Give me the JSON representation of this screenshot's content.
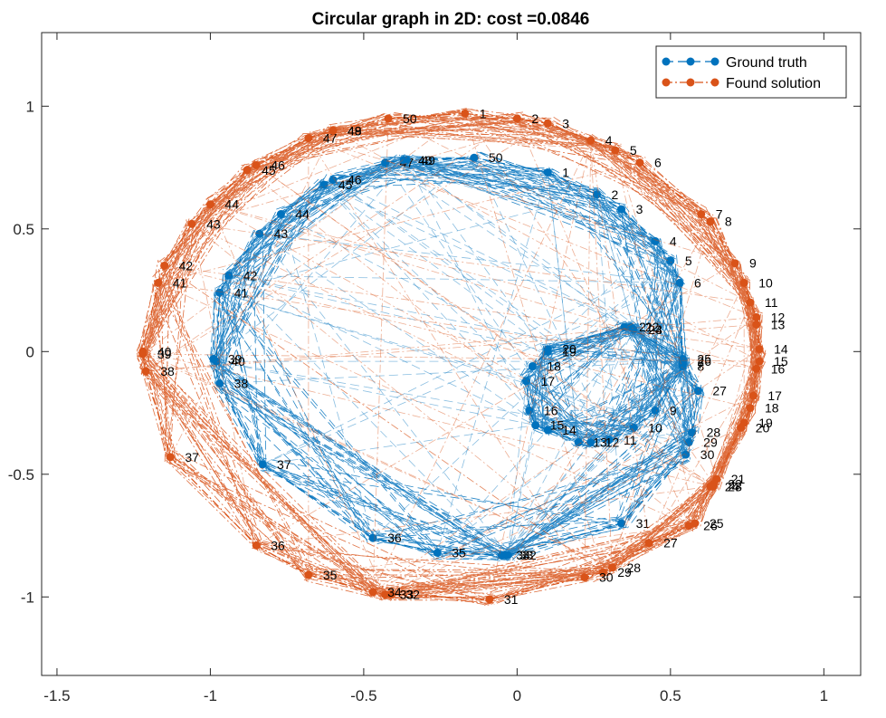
{
  "chart_data": {
    "type": "scatter",
    "title": "Circular graph in 2D: cost =0.0846",
    "xlabel": "",
    "ylabel": "",
    "xlim": [
      -1.55,
      1.12
    ],
    "ylim": [
      -1.32,
      1.3
    ],
    "xticks": [
      -1.5,
      -1,
      -0.5,
      0,
      0.5,
      1
    ],
    "xtick_labels": [
      "-1.5",
      "-1",
      "-0.5",
      "0",
      "0.5",
      "1"
    ],
    "yticks": [
      -1,
      -0.5,
      0,
      0.5,
      1
    ],
    "ytick_labels": [
      "-1",
      "-0.5",
      "0",
      "0.5",
      "1"
    ],
    "grid": false,
    "legend_position": "top-right",
    "series": [
      {
        "name": "Ground truth",
        "color": "#0072BD",
        "line_style": "dashed",
        "node_labels": [
          "1",
          "2",
          "3",
          "4",
          "5",
          "6",
          "7",
          "8",
          "9",
          "10",
          "11",
          "12",
          "13",
          "14",
          "15",
          "16",
          "17",
          "18",
          "19",
          "20",
          "21",
          "22",
          "23",
          "24",
          "25",
          "26",
          "27",
          "28",
          "29",
          "30",
          "31",
          "32",
          "33",
          "34",
          "35",
          "36",
          "37",
          "38",
          "39",
          "40",
          "41",
          "42",
          "43",
          "44",
          "45",
          "46",
          "47",
          "48",
          "49",
          "50"
        ],
        "x": [
          0.1,
          0.26,
          0.34,
          0.45,
          0.5,
          0.53,
          0.54,
          0.54,
          0.45,
          0.38,
          0.3,
          0.24,
          0.2,
          0.1,
          0.06,
          0.04,
          0.03,
          0.05,
          0.1,
          0.1,
          0.35,
          0.37,
          0.38,
          0.38,
          0.54,
          0.54,
          0.59,
          0.57,
          0.56,
          0.55,
          0.34,
          -0.03,
          -0.04,
          -0.05,
          -0.26,
          -0.47,
          -0.83,
          -0.97,
          -0.99,
          -0.98,
          -0.97,
          -0.94,
          -0.84,
          -0.77,
          -0.63,
          -0.6,
          -0.43,
          -0.37,
          -0.36,
          -0.14
        ],
        "y": [
          0.73,
          0.64,
          0.58,
          0.45,
          0.37,
          0.28,
          -0.05,
          -0.06,
          -0.24,
          -0.31,
          -0.36,
          -0.37,
          -0.37,
          -0.32,
          -0.3,
          -0.24,
          -0.12,
          -0.06,
          0.0,
          0.01,
          0.1,
          0.1,
          0.09,
          0.09,
          -0.03,
          -0.04,
          -0.16,
          -0.33,
          -0.37,
          -0.42,
          -0.7,
          -0.83,
          -0.83,
          -0.83,
          -0.82,
          -0.76,
          -0.46,
          -0.13,
          -0.03,
          -0.04,
          0.24,
          0.31,
          0.48,
          0.56,
          0.68,
          0.7,
          0.77,
          0.78,
          0.78,
          0.79
        ]
      },
      {
        "name": "Found solution",
        "color": "#D95319",
        "line_style": "dash-dot",
        "node_labels": [
          "1",
          "2",
          "3",
          "4",
          "5",
          "6",
          "7",
          "8",
          "9",
          "10",
          "11",
          "12",
          "13",
          "14",
          "15",
          "16",
          "17",
          "18",
          "19",
          "20",
          "21",
          "22",
          "23",
          "24",
          "25",
          "26",
          "27",
          "28",
          "29",
          "30",
          "31",
          "32",
          "33",
          "34",
          "35",
          "36",
          "37",
          "38",
          "39",
          "40",
          "41",
          "42",
          "43",
          "44",
          "45",
          "46",
          "47",
          "48",
          "49",
          "50"
        ],
        "x": [
          -0.17,
          0.0,
          0.1,
          0.24,
          0.32,
          0.4,
          0.6,
          0.63,
          0.71,
          0.74,
          0.76,
          0.78,
          0.78,
          0.79,
          0.79,
          0.78,
          0.77,
          0.76,
          0.74,
          0.73,
          0.65,
          0.64,
          0.64,
          0.63,
          0.58,
          0.56,
          0.43,
          0.31,
          0.28,
          0.22,
          -0.09,
          -0.41,
          -0.43,
          -0.47,
          -0.68,
          -0.85,
          -1.13,
          -1.21,
          -1.22,
          -1.22,
          -1.17,
          -1.15,
          -1.06,
          -1.0,
          -0.88,
          -0.85,
          -0.68,
          -0.6,
          -0.6,
          -0.42
        ],
        "y": [
          0.97,
          0.95,
          0.93,
          0.86,
          0.82,
          0.77,
          0.56,
          0.53,
          0.36,
          0.28,
          0.2,
          0.14,
          0.11,
          0.01,
          -0.04,
          -0.07,
          -0.18,
          -0.23,
          -0.29,
          -0.31,
          -0.52,
          -0.54,
          -0.55,
          -0.55,
          -0.7,
          -0.71,
          -0.78,
          -0.88,
          -0.9,
          -0.92,
          -1.01,
          -0.99,
          -0.99,
          -0.98,
          -0.91,
          -0.79,
          -0.43,
          -0.08,
          -0.01,
          0.0,
          0.28,
          0.35,
          0.52,
          0.6,
          0.74,
          0.76,
          0.87,
          0.9,
          0.9,
          0.95
        ]
      }
    ]
  }
}
